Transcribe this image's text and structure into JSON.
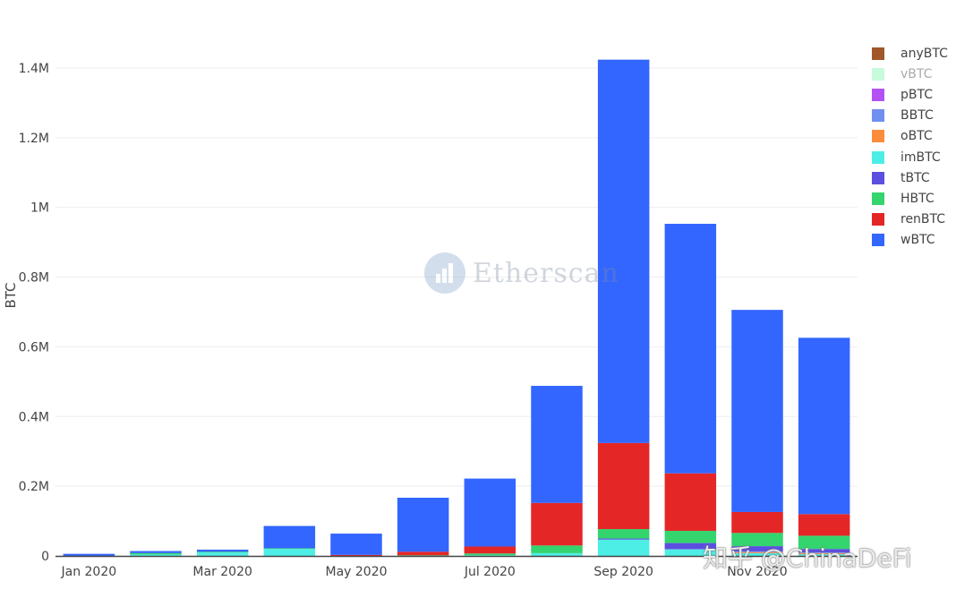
{
  "chart_data": {
    "type": "bar",
    "stacked": true,
    "title": "",
    "xlabel": "",
    "ylabel": "BTC",
    "ylim": [
      0,
      1450000
    ],
    "yticks": [
      0,
      200000,
      400000,
      600000,
      800000,
      1000000,
      1200000,
      1400000
    ],
    "ytick_labels": [
      "0",
      "0.2M",
      "0.4M",
      "0.6M",
      "0.8M",
      "1M",
      "1.2M",
      "1.4M"
    ],
    "xtick_labels": [
      "Jan 2020",
      "Mar 2020",
      "May 2020",
      "Jul 2020",
      "Sep 2020",
      "Nov 2020"
    ],
    "grid": true,
    "legend_position": "right",
    "categories": [
      "Jan 2020",
      "Feb 2020",
      "Mar 2020",
      "Apr 2020",
      "May 2020",
      "Jun 2020",
      "Jul 2020",
      "Aug 2020",
      "Sep 2020",
      "Oct 2020",
      "Nov 2020",
      "Dec 2020"
    ],
    "series": [
      {
        "name": "imBTC",
        "color": "#4deee6",
        "values": [
          0,
          4000,
          10000,
          20000,
          0,
          0,
          2000,
          8000,
          47000,
          18000,
          8000,
          5000
        ]
      },
      {
        "name": "oBTC",
        "color": "#fb8c3c",
        "values": [
          0,
          0,
          0,
          0,
          0,
          0,
          0,
          0,
          0,
          0,
          3000,
          3000
        ]
      },
      {
        "name": "BBTC",
        "color": "#7090f0",
        "values": [
          0,
          0,
          0,
          0,
          0,
          0,
          0,
          0,
          0,
          2000,
          2000,
          2000
        ]
      },
      {
        "name": "tBTC",
        "color": "#5c4fe0",
        "values": [
          0,
          0,
          0,
          0,
          0,
          0,
          0,
          0,
          3000,
          17000,
          15000,
          10000
        ]
      },
      {
        "name": "HBTC",
        "color": "#34d46e",
        "values": [
          0,
          4000,
          2000,
          2000,
          0,
          2000,
          5000,
          22000,
          27000,
          35000,
          38000,
          38000
        ]
      },
      {
        "name": "renBTC",
        "color": "#e52626",
        "values": [
          0,
          0,
          0,
          0,
          3000,
          10000,
          20000,
          122000,
          247000,
          165000,
          60000,
          62000
        ]
      },
      {
        "name": "wBTC",
        "color": "#3366ff",
        "values": [
          6000,
          6000,
          6000,
          64000,
          61000,
          155000,
          195000,
          336000,
          1100000,
          716000,
          580000,
          506000
        ]
      },
      {
        "name": "anyBTC",
        "color": "#a0582a",
        "values": [
          0,
          0,
          0,
          0,
          0,
          0,
          0,
          0,
          0,
          0,
          0,
          0
        ]
      },
      {
        "name": "vBTC",
        "color": "#c8fadc",
        "values": [
          0,
          0,
          0,
          0,
          0,
          0,
          0,
          0,
          0,
          0,
          0,
          0
        ]
      },
      {
        "name": "pBTC",
        "color": "#b451f5",
        "values": [
          0,
          0,
          0,
          0,
          0,
          0,
          0,
          0,
          0,
          0,
          0,
          0
        ]
      }
    ],
    "totals_approx": [
      6000,
      14000,
      18000,
      86000,
      64000,
      167000,
      222000,
      488000,
      1424000,
      953000,
      706000,
      626000
    ]
  },
  "legend": [
    {
      "name": "anyBTC",
      "color": "#a0582a",
      "faded": false
    },
    {
      "name": "vBTC",
      "color": "#c8fadc",
      "faded": true
    },
    {
      "name": "pBTC",
      "color": "#b451f5",
      "faded": false
    },
    {
      "name": "BBTC",
      "color": "#7090f0",
      "faded": false
    },
    {
      "name": "oBTC",
      "color": "#fb8c3c",
      "faded": false
    },
    {
      "name": "imBTC",
      "color": "#4deee6",
      "faded": false
    },
    {
      "name": "tBTC",
      "color": "#5c4fe0",
      "faded": false
    },
    {
      "name": "HBTC",
      "color": "#34d46e",
      "faded": false
    },
    {
      "name": "renBTC",
      "color": "#e52626",
      "faded": false
    },
    {
      "name": "wBTC",
      "color": "#3366ff",
      "faded": false
    }
  ],
  "watermarks": {
    "etherscan": "Etherscan",
    "zhihu": "知乎 @ChinaDeFi"
  }
}
